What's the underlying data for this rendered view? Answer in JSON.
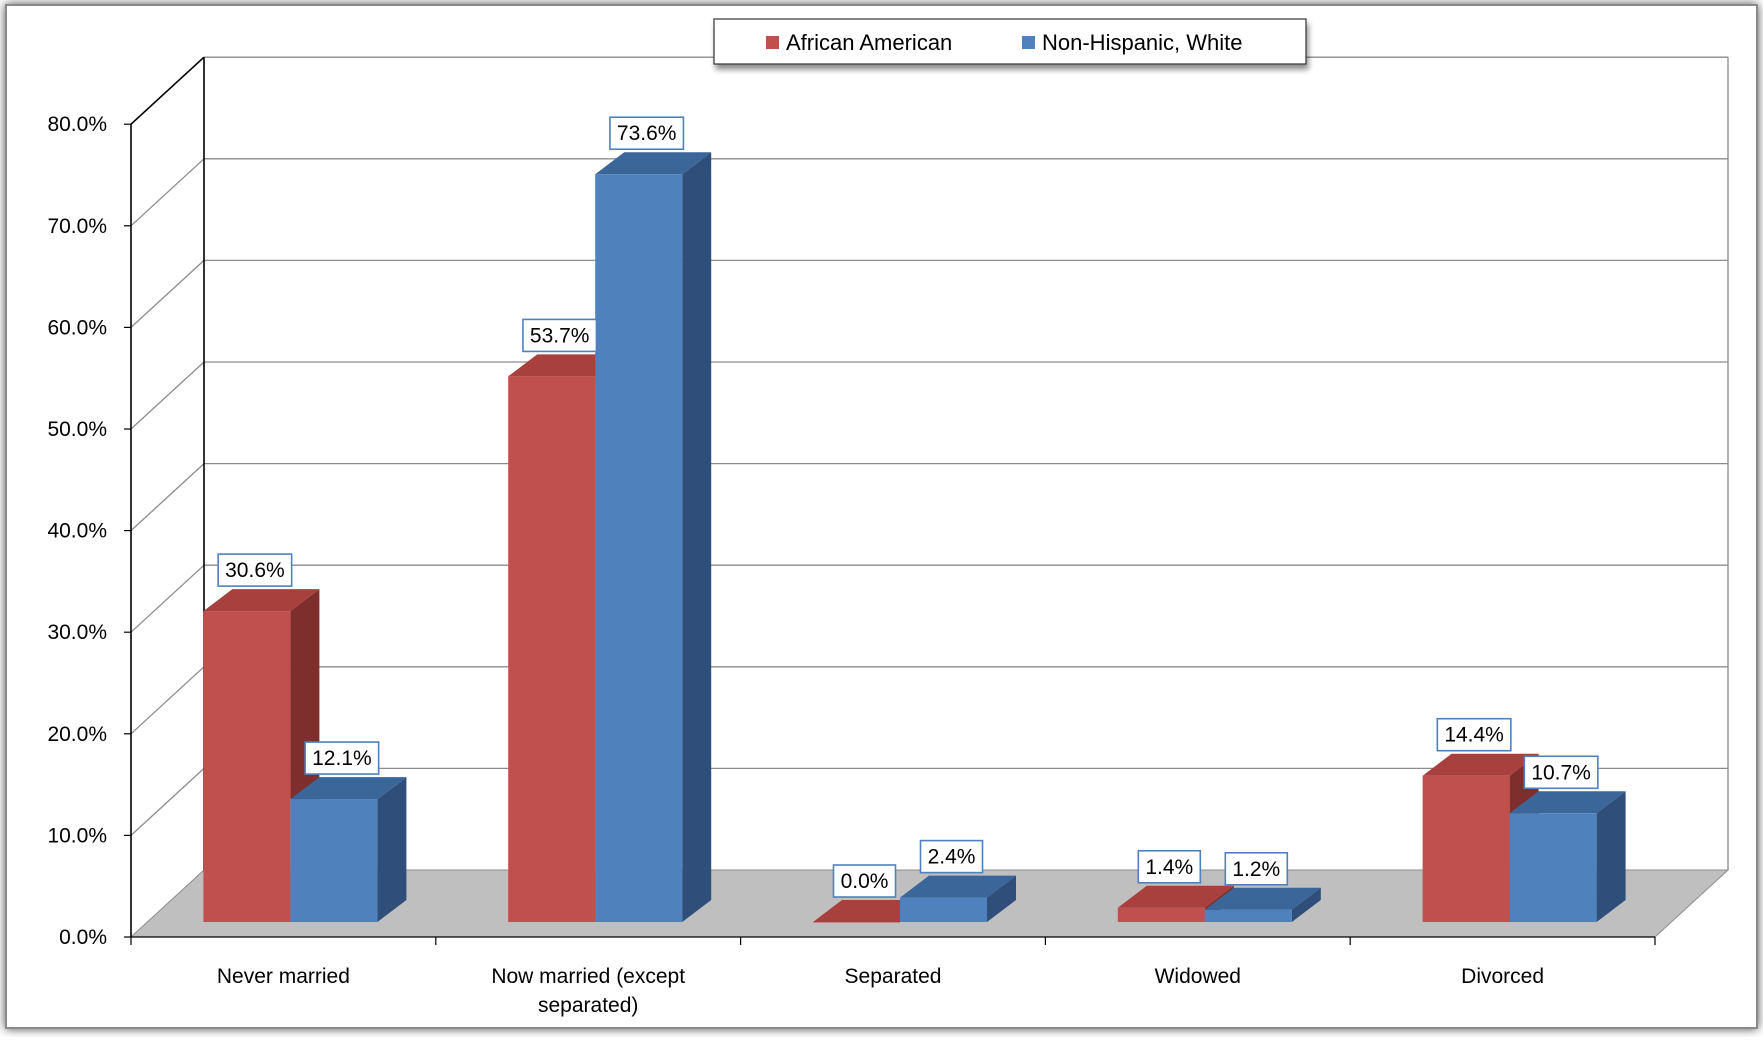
{
  "chart_data": {
    "type": "bar",
    "title": "",
    "xlabel": "",
    "ylabel": "",
    "categories": [
      "Never married",
      "Now married (except separated)",
      "Separated",
      "Widowed",
      "Divorced"
    ],
    "category_lines": [
      [
        "Never married"
      ],
      [
        "Now married (except",
        "separated)"
      ],
      [
        "Separated"
      ],
      [
        "Widowed"
      ],
      [
        "Divorced"
      ]
    ],
    "series": [
      {
        "name": "African American",
        "values": [
          30.6,
          53.7,
          0.0,
          1.4,
          14.4
        ],
        "color": "#C0504D",
        "side_color": "#7F2E2E",
        "top_color": "#A8403D"
      },
      {
        "name": "Non-Hispanic, White",
        "values": [
          12.1,
          73.6,
          2.4,
          1.2,
          10.7
        ],
        "color": "#4F81BD",
        "side_color": "#2F4F7A",
        "top_color": "#3A6699"
      }
    ],
    "data_labels": [
      [
        "30.6%",
        "53.7%",
        "0.0%",
        "1.4%",
        "14.4%"
      ],
      [
        "12.1%",
        "73.6%",
        "2.4%",
        "1.2%",
        "10.7%"
      ]
    ],
    "ylim": [
      0,
      80
    ],
    "yticks": [
      "0.0%",
      "10.0%",
      "20.0%",
      "30.0%",
      "40.0%",
      "50.0%",
      "60.0%",
      "70.0%",
      "80.0%"
    ],
    "grid": true,
    "legend_position": "top-center",
    "floor_color": "#BFBFBF",
    "gridline_color": "#8C8C8C"
  }
}
